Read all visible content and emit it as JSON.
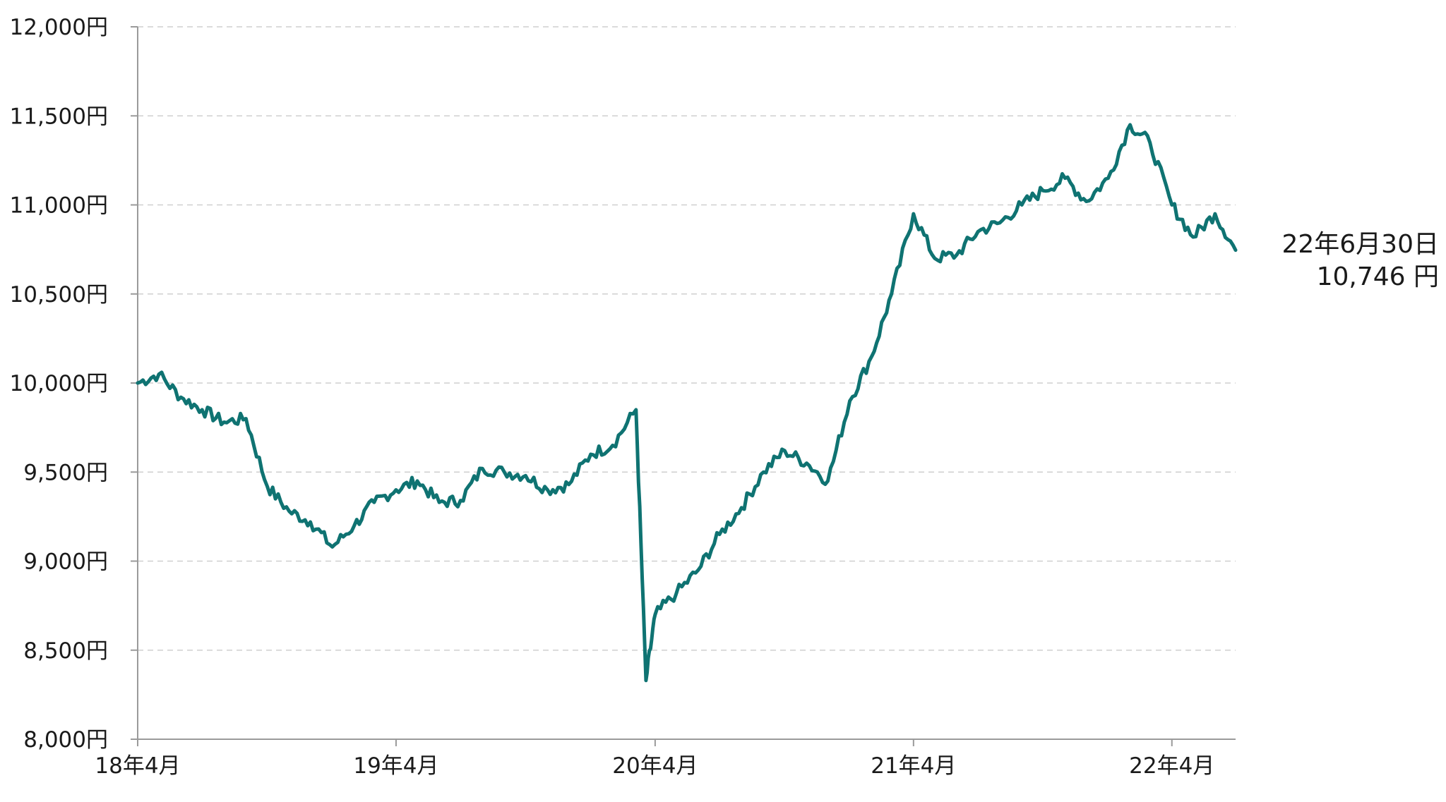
{
  "chart_data": {
    "type": "line",
    "title": "",
    "xlabel": "",
    "ylabel": "",
    "ylim": [
      8000,
      12000
    ],
    "y_ticks": [
      8000,
      8500,
      9000,
      9500,
      10000,
      10500,
      11000,
      11500,
      12000
    ],
    "y_tick_labels": [
      "8,000円",
      "8,500円",
      "9,000円",
      "9,500円",
      "10,000円",
      "10,500円",
      "11,000円",
      "11,500円",
      "12,000円"
    ],
    "x_range": [
      "2018-04",
      "2022-06-30"
    ],
    "x_ticks": [
      "2018-04",
      "2019-04",
      "2020-04",
      "2021-04",
      "2022-04"
    ],
    "x_tick_labels": [
      "18年4月",
      "19年4月",
      "20年4月",
      "21年4月",
      "22年4月"
    ],
    "grid": "horizontal dashed",
    "line_color": "#0f7372",
    "series": [
      {
        "x": [
          "2018-04",
          "2018-05",
          "2018-06",
          "2018-07",
          "2018-08",
          "2018-09",
          "2018-10",
          "2018-11",
          "2018-12",
          "2019-01",
          "2019-02",
          "2019-03",
          "2019-04",
          "2019-05",
          "2019-06",
          "2019-07",
          "2019-08",
          "2019-09",
          "2019-10",
          "2019-11",
          "2019-12",
          "2020-01",
          "2020-02",
          "2020-03-05",
          "2020-03-19",
          "2020-04",
          "2020-05",
          "2020-06",
          "2020-07",
          "2020-08",
          "2020-09",
          "2020-10",
          "2020-11",
          "2020-12",
          "2021-01",
          "2021-02",
          "2021-03",
          "2021-04",
          "2021-05",
          "2021-06",
          "2021-07",
          "2021-08",
          "2021-09",
          "2021-10",
          "2021-11",
          "2021-12",
          "2022-01",
          "2022-02",
          "2022-03",
          "2022-04",
          "2022-05",
          "2022-06",
          "2022-06-30"
        ],
        "values": [
          10000,
          10050,
          9920,
          9850,
          9780,
          9800,
          9420,
          9280,
          9220,
          9080,
          9200,
          9330,
          9400,
          9450,
          9330,
          9340,
          9520,
          9500,
          9480,
          9400,
          9430,
          9600,
          9650,
          9850,
          8330,
          8700,
          8820,
          8950,
          9150,
          9300,
          9500,
          9620,
          9550,
          9450,
          9900,
          10150,
          10500,
          10950,
          10700,
          10720,
          10850,
          10900,
          11000,
          11080,
          11150,
          11020,
          11150,
          11450,
          11350,
          11000,
          10820,
          10950,
          10746
        ]
      }
    ],
    "annotation": {
      "date_label": "22年6月30日",
      "value_label": "10,746 円"
    }
  }
}
